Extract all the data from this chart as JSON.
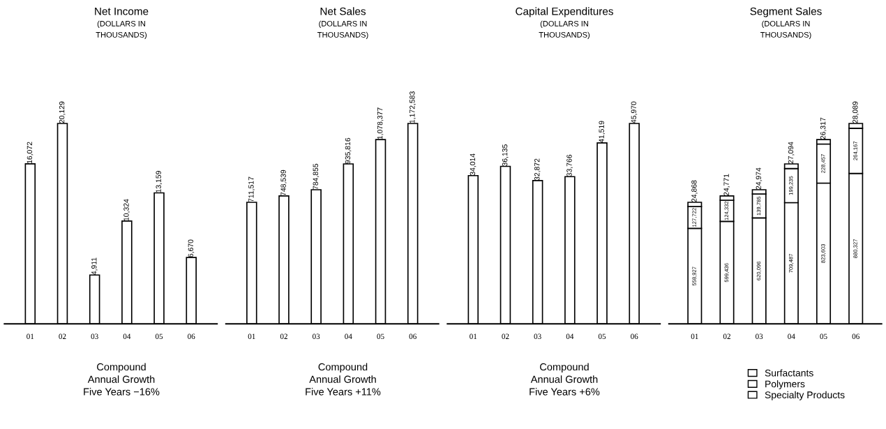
{
  "chart_data": [
    {
      "type": "bar",
      "title": "Net Income",
      "subtitle": "(DOLLARS IN\nTHOUSANDS)",
      "categories": [
        "01",
        "02",
        "03",
        "04",
        "05",
        "06"
      ],
      "values": [
        16072,
        20129,
        4911,
        10324,
        13159,
        6670
      ],
      "value_labels": [
        "16,072",
        "20,129",
        "4,911",
        "10,324",
        "13,159",
        "6,670"
      ],
      "color": "#ffffff",
      "annotations": [
        "Compound\nAnnual Growth\nFive Years −16%"
      ]
    },
    {
      "type": "bar",
      "title": "Net Sales",
      "subtitle": "(DOLLARS IN\nTHOUSANDS)",
      "categories": [
        "01",
        "02",
        "03",
        "04",
        "05",
        "06"
      ],
      "values": [
        711517,
        748539,
        784855,
        935816,
        1078377,
        1172583
      ],
      "value_labels": [
        "711,517",
        "748,539",
        "784,855",
        "935,816",
        "1,078,377",
        "1,172,583"
      ],
      "color": "#ffffff",
      "annotations": [
        "Compound\nAnnual Growth\nFive Years +11%"
      ]
    },
    {
      "type": "bar",
      "title": "Capital Expenditures",
      "subtitle": "(DOLLARS IN\nTHOUSANDS)",
      "categories": [
        "01",
        "02",
        "03",
        "04",
        "05",
        "06"
      ],
      "values": [
        34014,
        36135,
        32872,
        33766,
        41519,
        45970
      ],
      "value_labels": [
        "34,014",
        "36,135",
        "32,872",
        "33,766",
        "41,519",
        "45,970"
      ],
      "color": "#ffffff",
      "annotations": [
        "Compound\nAnnual Growth\nFive Years +6%"
      ]
    },
    {
      "type": "bar",
      "title": "Segment Sales",
      "subtitle": "(DOLLARS IN\nTHOUSANDS)",
      "categories": [
        "01",
        "02",
        "03",
        "04",
        "05",
        "06"
      ],
      "stacked": true,
      "legend": "bottom",
      "series": [
        {
          "name": "Surfactants",
          "color": "#ffffff",
          "values": [
            558927,
            599436,
            620096,
            709487,
            823603,
            880327
          ],
          "value_labels": [
            "558,927",
            "599,436",
            "620,096",
            "709,487",
            "823,603",
            "880,327"
          ]
        },
        {
          "name": "Polymers",
          "color": "#ffffff",
          "values": [
            127722,
            124332,
            139785,
            199235,
            228457,
            264167
          ],
          "value_labels": [
            "127,722",
            "124,332",
            "139,785",
            "199,235",
            "228,457",
            "264,167"
          ]
        },
        {
          "name": "Specialty Products",
          "color": "#ffffff",
          "values": [
            24868,
            24771,
            24974,
            27094,
            26317,
            28089
          ],
          "value_labels": [
            "24,868",
            "24,771",
            "24,974",
            "27,094",
            "26,317",
            "28,089"
          ]
        }
      ]
    }
  ]
}
